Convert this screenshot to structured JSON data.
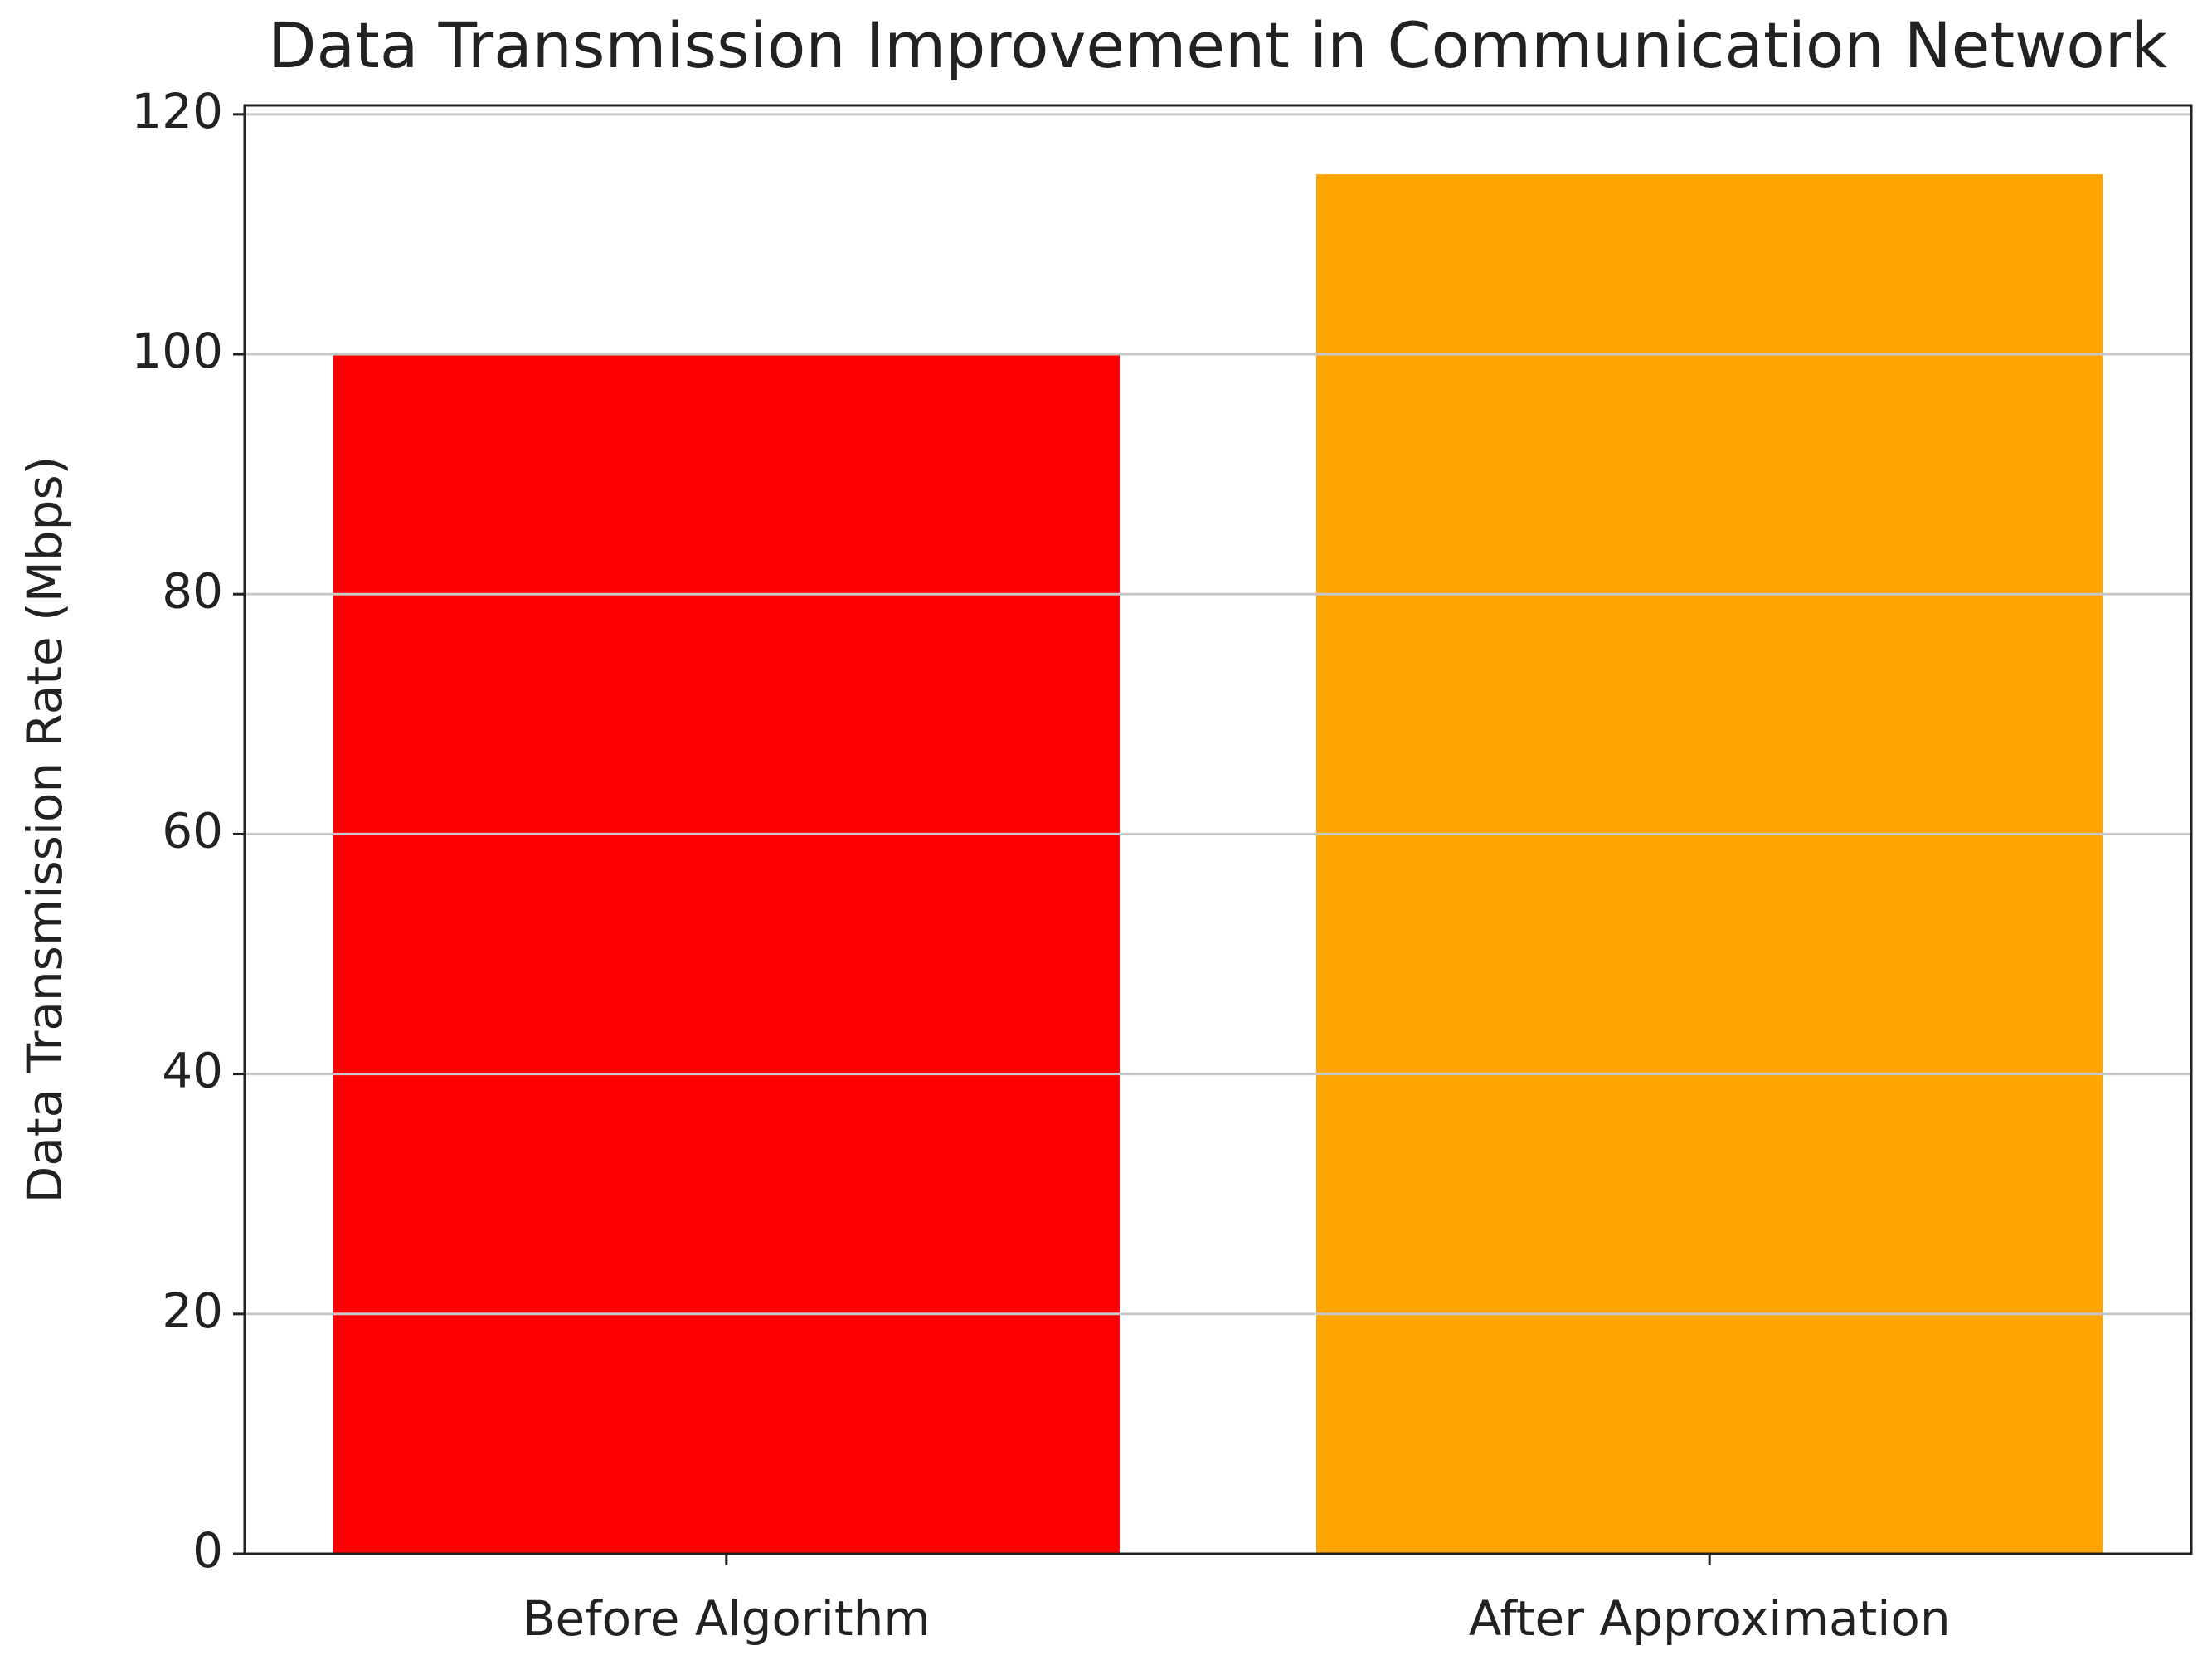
{
  "chart_data": {
    "type": "bar",
    "title": "Data Transmission Improvement in Communication Network",
    "ylabel": "Data Transmission Rate (Mbps)",
    "categories": [
      "Before Algorithm",
      "After Approximation"
    ],
    "values": [
      100,
      115
    ],
    "colors": [
      "#ff0000",
      "#ffa500"
    ],
    "ylim": [
      0,
      120.75
    ],
    "yticks": [
      0,
      20,
      40,
      60,
      80,
      100,
      120
    ],
    "grid": true
  }
}
